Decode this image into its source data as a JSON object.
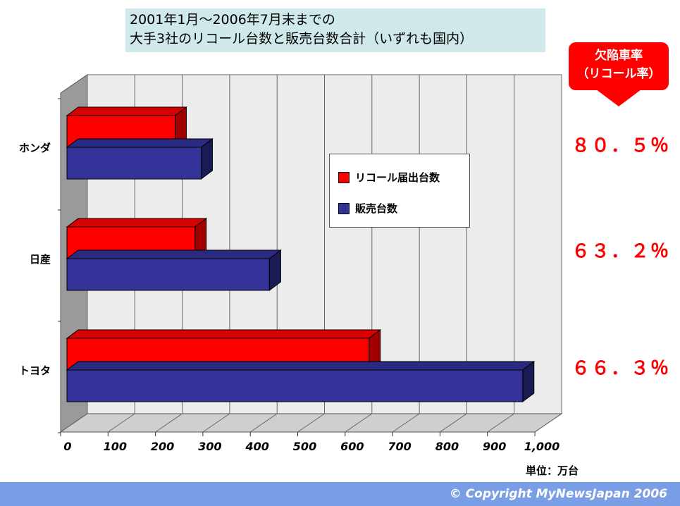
{
  "title": {
    "line1": "2001年1月～2006年7月末までの",
    "line2": "大手3社のリコール台数と販売台数合計（いずれも国内）"
  },
  "rate_header": {
    "line1": "欠陥車率",
    "line2": "（リコール率）"
  },
  "rates": [
    {
      "company": "ホンダ",
      "value": "８０．５％"
    },
    {
      "company": "日産",
      "value": "６３．２％"
    },
    {
      "company": "トヨタ",
      "value": "６６．３％"
    }
  ],
  "unit": "単位：万台",
  "copyright": "© Copyright   MyNewsJapan 2006",
  "chart_data": {
    "type": "bar",
    "orientation": "horizontal",
    "categories": [
      "ホンダ",
      "日産",
      "トヨタ"
    ],
    "series": [
      {
        "name": "リコール届出台数",
        "color": "#ff0000",
        "values": [
          228,
          270,
          637
        ]
      },
      {
        "name": "販売台数",
        "color": "#333399",
        "values": [
          283,
          427,
          961
        ]
      }
    ],
    "x_ticks": [
      "0",
      "100",
      "200",
      "300",
      "400",
      "500",
      "600",
      "700",
      "800",
      "900",
      "1,000"
    ],
    "xlim": [
      0,
      1000
    ],
    "grid": true,
    "legend_position": "center"
  }
}
